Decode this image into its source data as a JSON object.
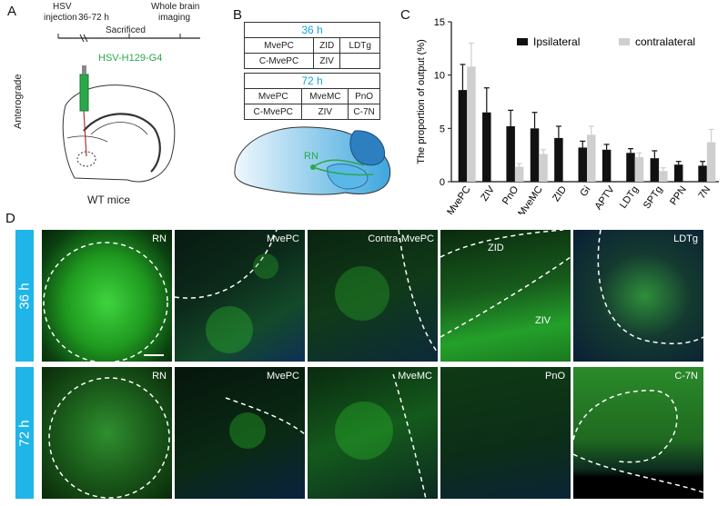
{
  "panelA": {
    "letter": "A",
    "timeline": {
      "step1": "HSV",
      "step1b": "injection",
      "interval": "36-72 h",
      "step2": "Sacrificed",
      "step3": "Whole brain",
      "step3b": "imaging"
    },
    "virus_label": "HSV-H129-G4",
    "side_label": "Anterograde",
    "bottom_label": "WT mice"
  },
  "panelB": {
    "letter": "B",
    "table36": {
      "title": "36 h",
      "rows": [
        [
          "MvePC",
          "ZID",
          "LDTg"
        ],
        [
          "C-MvePC",
          "ZIV",
          ""
        ]
      ]
    },
    "table72": {
      "title": "72 h",
      "rows": [
        [
          "MvePC",
          "MveMC",
          "PnO"
        ],
        [
          "C-MvePC",
          "ZIV",
          "C-7N"
        ]
      ]
    },
    "brain_label": "RN"
  },
  "panelC": {
    "letter": "C",
    "chart_data": {
      "type": "bar",
      "categories": [
        "MvePC",
        "ZIV",
        "PnO",
        "MveMC",
        "ZID",
        "Gi",
        "APTV",
        "LDTg",
        "SPTg",
        "PPN",
        "7N"
      ],
      "series": [
        {
          "name": "Ipsilateral",
          "values": [
            8.6,
            6.5,
            5.2,
            5.0,
            4.1,
            3.2,
            3.0,
            2.7,
            2.2,
            1.6,
            1.5
          ],
          "errors": [
            2.4,
            2.3,
            1.5,
            1.5,
            1.1,
            0.6,
            0.5,
            0.4,
            0.7,
            0.3,
            0.4
          ]
        },
        {
          "name": "contralateral",
          "values": [
            10.8,
            0,
            1.4,
            2.6,
            0,
            4.4,
            0,
            2.3,
            1.0,
            0,
            3.7
          ],
          "errors": [
            2.2,
            0,
            0.3,
            0.4,
            0,
            0.8,
            0,
            0.4,
            0.3,
            0,
            1.2
          ]
        }
      ],
      "ylabel": "The proportion of output (%)",
      "ylim": [
        0,
        15
      ],
      "yticks": [
        "0",
        "5",
        "10",
        "15"
      ],
      "colors": {
        "Ipsilateral": "#111111",
        "contralateral": "#cfcfcf"
      }
    }
  },
  "panelD": {
    "letter": "D",
    "row1": {
      "time": "36 h",
      "labels": [
        "RN",
        "MvePC",
        "Contra-MvePC",
        "ZID",
        "LDTg"
      ],
      "extra": "ZIV"
    },
    "row2": {
      "time": "72 h",
      "labels": [
        "RN",
        "MvePC",
        "MveMC",
        "PnO",
        "C-7N"
      ]
    }
  }
}
